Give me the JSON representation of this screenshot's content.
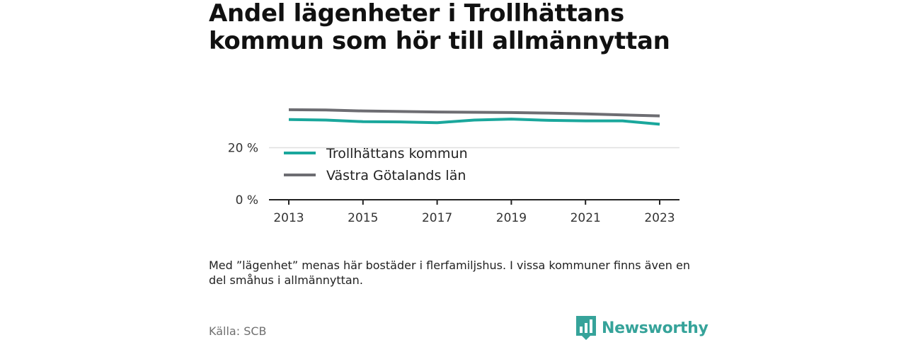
{
  "title": "Andel lägenheter i Trollhättans kommun som hör till allmännyttan",
  "note": "Med ”lägenhet” menas här bostäder i flerfamiljshus. I vissa kommuner finns även en del småhus i allmännyttan.",
  "source": "Källa: SCB",
  "brand": {
    "name": "Newsworthy",
    "color": "#36a39a",
    "icon": "bar-chart-speech-bubble-icon"
  },
  "chart_data": {
    "type": "line",
    "x": [
      2013,
      2014,
      2015,
      2016,
      2017,
      2018,
      2019,
      2020,
      2021,
      2022,
      2023
    ],
    "series": [
      {
        "name": "Trollhättans kommun",
        "color": "#1aa79c",
        "values": [
          30.8,
          30.6,
          30.0,
          29.9,
          29.6,
          30.6,
          31.0,
          30.5,
          30.3,
          30.3,
          29.0
        ]
      },
      {
        "name": "Västra Götalands län",
        "color": "#6d6d72",
        "values": [
          34.6,
          34.5,
          34.1,
          33.9,
          33.7,
          33.6,
          33.5,
          33.3,
          33.0,
          32.6,
          32.2
        ]
      }
    ],
    "xticks": [
      "2013",
      "2015",
      "2017",
      "2019",
      "2021",
      "2023"
    ],
    "ytick_labels": [
      "0 %",
      "20 %"
    ],
    "yticks": [
      0,
      20
    ],
    "ylim": [
      0,
      40
    ],
    "grid": true,
    "legend_position": "inside-left"
  }
}
